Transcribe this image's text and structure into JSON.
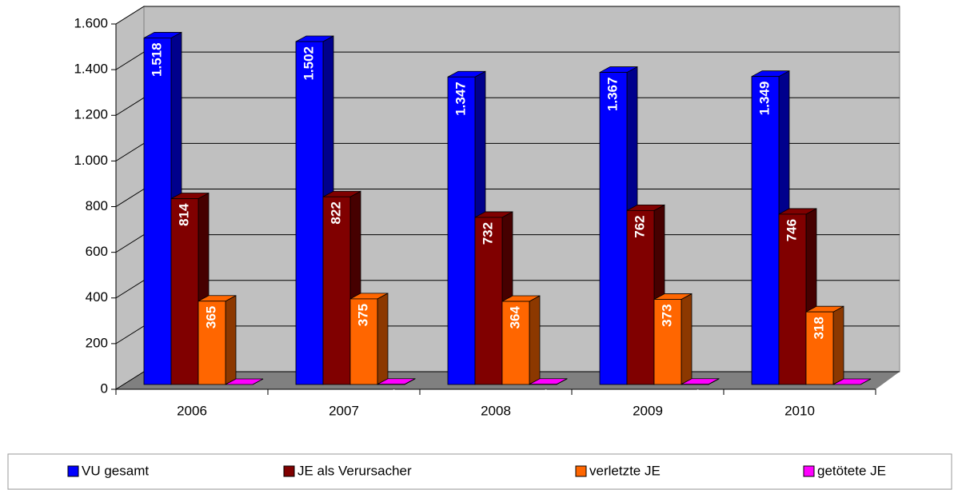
{
  "chart_data": {
    "type": "bar3d",
    "categories": [
      "2006",
      "2007",
      "2008",
      "2009",
      "2010"
    ],
    "series": [
      {
        "name": "VU gesamt",
        "color": "#0000ff",
        "values": [
          1518,
          1502,
          1347,
          1367,
          1349
        ],
        "value_labels": [
          "1.518",
          "1.502",
          "1.347",
          "1.367",
          "1.349"
        ]
      },
      {
        "name": "JE als Verursacher",
        "color": "#800000",
        "values": [
          814,
          822,
          732,
          762,
          746
        ]
      },
      {
        "name": "verletzte JE",
        "color": "#ff6600",
        "values": [
          365,
          375,
          364,
          373,
          318
        ]
      },
      {
        "name": "getötete JE",
        "color": "#ff00ff",
        "values": [
          0,
          1,
          1,
          1,
          0
        ]
      }
    ],
    "ylim": [
      0,
      1600
    ],
    "yticks": [
      0,
      200,
      400,
      600,
      800,
      {
        "value": 1000,
        "label": "1.000"
      },
      {
        "value": 1200,
        "label": "1.200"
      },
      {
        "value": 1400,
        "label": "1.400"
      },
      {
        "value": 1600,
        "label": "1.600"
      }
    ],
    "grid": true,
    "legend": "bottom"
  }
}
